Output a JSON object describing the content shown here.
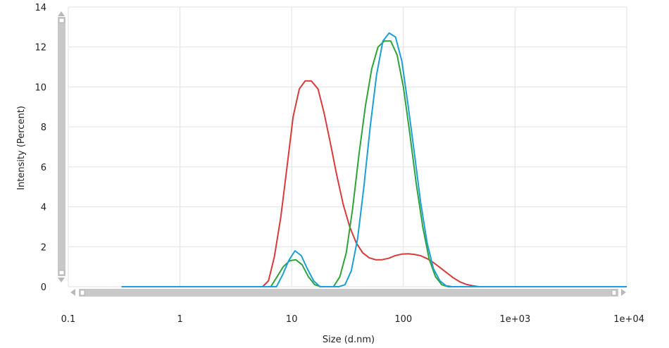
{
  "chart_data": {
    "type": "line",
    "xlabel": "Size (d.nm)",
    "ylabel": "Intensity (Percent)",
    "x_scale": "log",
    "xlim": [
      0.1,
      10000
    ],
    "ylim": [
      0,
      14
    ],
    "x_ticks": [
      0.1,
      1,
      10,
      100,
      1000,
      10000
    ],
    "x_tick_labels": [
      "0.1",
      "1",
      "10",
      "100",
      "1e+03",
      "1e+04"
    ],
    "y_ticks": [
      0,
      2,
      4,
      6,
      8,
      10,
      12,
      14
    ],
    "y_tick_labels": [
      "0",
      "2",
      "4",
      "6",
      "8",
      "10",
      "12",
      "14"
    ],
    "grid": true,
    "series": [
      {
        "color": "#d93a3a",
        "x": [
          0.3,
          5.5,
          6.2,
          7.0,
          8.0,
          9.0,
          10.3,
          11.7,
          13.2,
          15.0,
          17.2,
          19.5,
          22.2,
          25.3,
          29.0,
          33.1,
          37.8,
          43.2,
          49.4,
          56.4,
          64.4,
          73.6,
          84.1,
          96.2,
          110,
          125,
          143,
          164,
          187,
          214,
          244,
          279,
          319,
          364,
          416,
          476,
          600,
          10000
        ],
        "y": [
          0,
          0,
          0.3,
          1.5,
          3.5,
          5.8,
          8.5,
          9.9,
          10.3,
          10.3,
          9.9,
          8.7,
          7.2,
          5.6,
          4.1,
          3.0,
          2.2,
          1.7,
          1.45,
          1.35,
          1.35,
          1.42,
          1.55,
          1.63,
          1.65,
          1.62,
          1.55,
          1.4,
          1.2,
          0.95,
          0.7,
          0.45,
          0.25,
          0.12,
          0.05,
          0,
          0,
          0
        ]
      },
      {
        "color": "#2ea33a",
        "x": [
          0.3,
          6.5,
          7.4,
          8.4,
          9.6,
          10.9,
          12.4,
          14.1,
          16.1,
          18.3,
          20.8,
          23.7,
          27.0,
          30.8,
          35.1,
          40.0,
          45.6,
          52.0,
          59.3,
          67.6,
          77.1,
          87.9,
          100,
          114,
          130,
          149,
          170,
          194,
          221,
          252,
          10000
        ],
        "y": [
          0,
          0,
          0.5,
          1.0,
          1.3,
          1.35,
          1.1,
          0.5,
          0.1,
          0,
          0,
          0,
          0.5,
          1.7,
          3.9,
          6.6,
          9.0,
          10.9,
          12.0,
          12.3,
          12.3,
          11.6,
          10.0,
          7.7,
          5.2,
          3.0,
          1.4,
          0.5,
          0.1,
          0,
          0
        ]
      },
      {
        "color": "#1e9ed6",
        "x": [
          0.3,
          7.3,
          8.3,
          9.4,
          10.7,
          12.2,
          13.8,
          15.7,
          17.9,
          20.4,
          23.2,
          26.4,
          30.0,
          34.2,
          38.9,
          44.3,
          50.5,
          57.5,
          65.5,
          74.6,
          85.0,
          96.9,
          110,
          126,
          143,
          163,
          186,
          212,
          241,
          275,
          10000
        ],
        "y": [
          0,
          0,
          0.6,
          1.3,
          1.8,
          1.55,
          0.9,
          0.3,
          0,
          0,
          0,
          0,
          0.1,
          0.8,
          2.4,
          5.0,
          8.0,
          10.6,
          12.3,
          12.7,
          12.5,
          11.3,
          9.1,
          6.6,
          4.2,
          2.2,
          0.9,
          0.3,
          0.05,
          0,
          0
        ]
      }
    ]
  }
}
